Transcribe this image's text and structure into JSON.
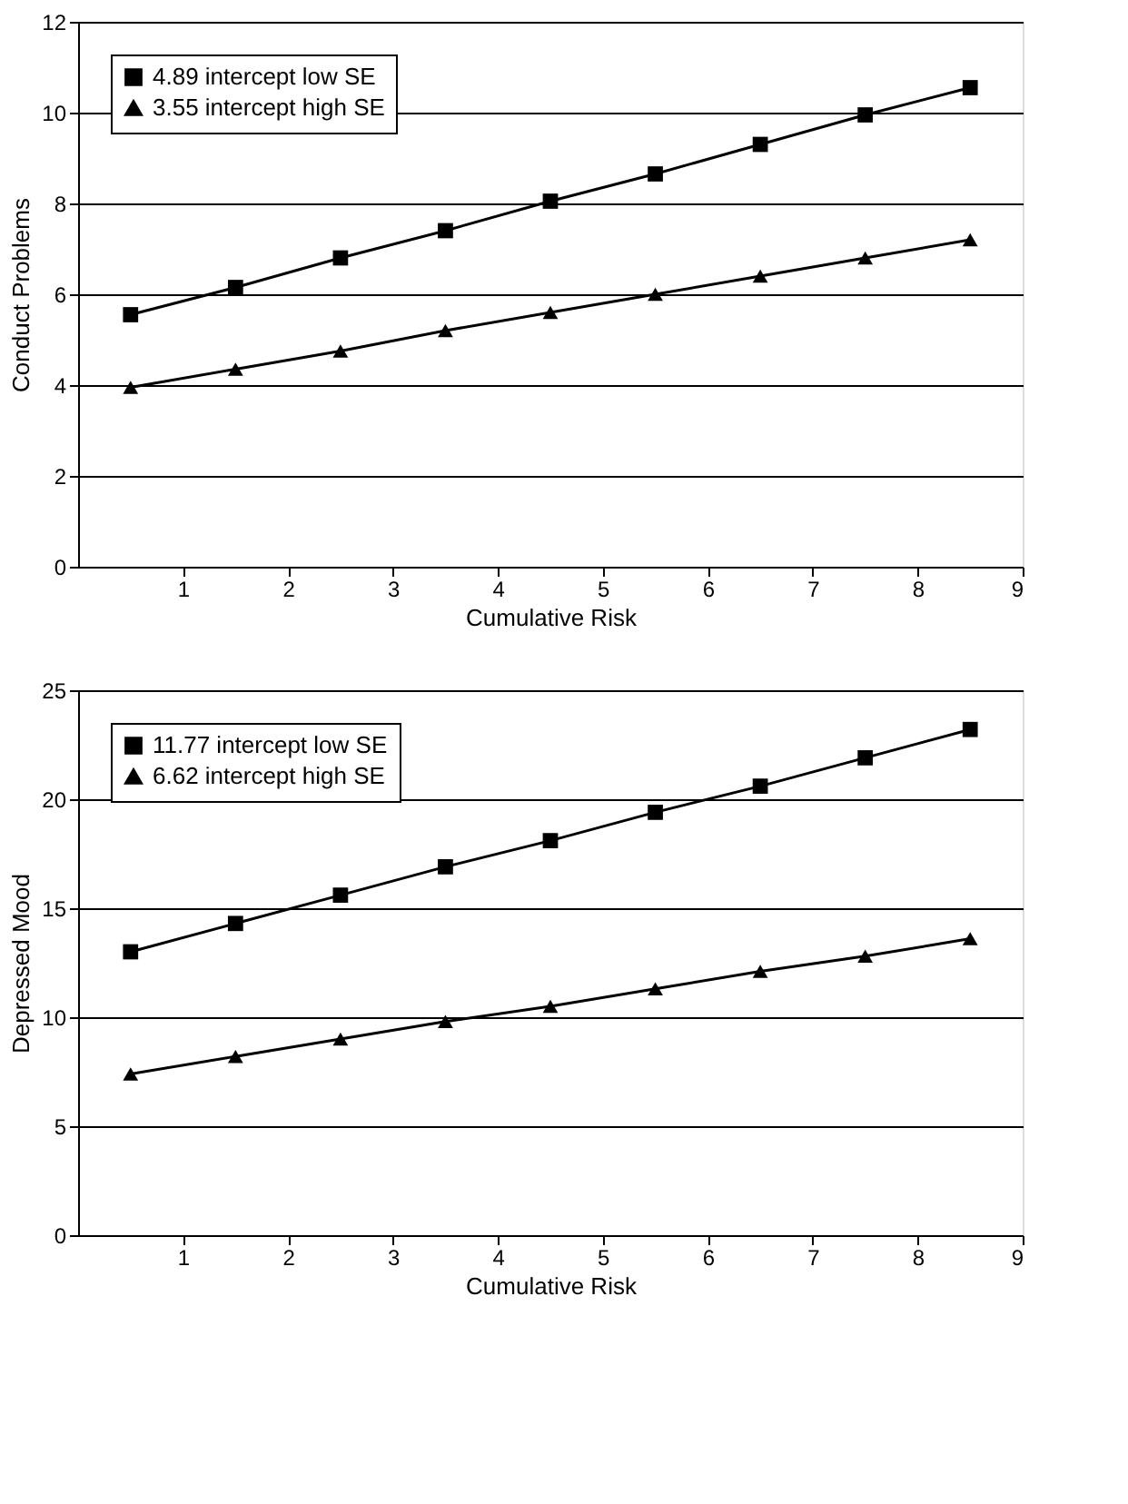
{
  "chart_data": [
    {
      "type": "line",
      "xlabel": "Cumulative Risk",
      "ylabel": "Conduct Problems",
      "x": [
        0.5,
        1.5,
        2.5,
        3.5,
        4.5,
        5.5,
        6.5,
        7.5,
        8.5
      ],
      "xlim": [
        0,
        9
      ],
      "xticks": [
        1,
        2,
        3,
        4,
        5,
        6,
        7,
        8,
        9
      ],
      "ylim": [
        0,
        12
      ],
      "yticks": [
        0,
        2,
        4,
        6,
        8,
        10,
        12
      ],
      "grid": "y",
      "legend": "top left",
      "series": [
        {
          "name": "4.89 intercept low SE",
          "color": "#000000",
          "marker": "square",
          "values": [
            5.55,
            6.15,
            6.8,
            7.4,
            8.05,
            8.65,
            9.3,
            9.95,
            10.55
          ]
        },
        {
          "name": "3.55 intercept high SE",
          "color": "#000000",
          "marker": "triangle",
          "values": [
            3.95,
            4.35,
            4.75,
            5.2,
            5.6,
            6.0,
            6.4,
            6.8,
            7.2
          ]
        }
      ]
    },
    {
      "type": "line",
      "xlabel": "Cumulative Risk",
      "ylabel": "Depressed Mood",
      "x": [
        0.5,
        1.5,
        2.5,
        3.5,
        4.5,
        5.5,
        6.5,
        7.5,
        8.5
      ],
      "xlim": [
        0,
        9
      ],
      "xticks": [
        1,
        2,
        3,
        4,
        5,
        6,
        7,
        8,
        9
      ],
      "ylim": [
        0,
        25
      ],
      "yticks": [
        0,
        5,
        10,
        15,
        20,
        25
      ],
      "grid": "y",
      "legend": "top left",
      "series": [
        {
          "name": "11.77 intercept low SE",
          "color": "#000000",
          "marker": "square",
          "values": [
            13.0,
            14.3,
            15.6,
            16.9,
            18.1,
            19.4,
            20.6,
            21.9,
            23.2
          ]
        },
        {
          "name": "6.62 intercept high SE",
          "color": "#000000",
          "marker": "triangle",
          "values": [
            7.4,
            8.2,
            9.0,
            9.8,
            10.5,
            11.3,
            12.1,
            12.8,
            13.6
          ]
        }
      ]
    }
  ]
}
